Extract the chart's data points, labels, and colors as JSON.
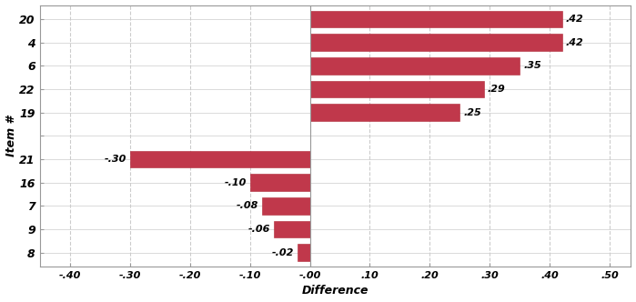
{
  "items": [
    "20",
    "4",
    "6",
    "22",
    "19",
    "",
    "21",
    "16",
    "7",
    "9",
    "8"
  ],
  "values": [
    0.42,
    0.42,
    0.35,
    0.29,
    0.25,
    null,
    -0.3,
    -0.1,
    -0.08,
    -0.06,
    -0.02
  ],
  "formatted_labels": [
    ".42",
    ".42",
    ".35",
    ".29",
    ".25",
    null,
    "-.30",
    "-.10",
    "-.08",
    "-.06",
    "-.02"
  ],
  "bar_color": "#c0384b",
  "bar_edge_color": "#b02838",
  "xlabel": "Difference",
  "ylabel": "Item #",
  "xlim": [
    -0.45,
    0.535
  ],
  "xticks": [
    -0.4,
    -0.3,
    -0.2,
    -0.1,
    0.0,
    0.1,
    0.2,
    0.3,
    0.4,
    0.5
  ],
  "xtick_labels": [
    "-.40",
    "-.30",
    "-.20",
    "-.10",
    "-.00",
    ".10",
    ".20",
    ".30",
    ".40",
    ".50"
  ],
  "background_color": "#ffffff",
  "plot_bg_color": "#ffffff",
  "grid_color": "#cccccc",
  "spine_color": "#999999"
}
